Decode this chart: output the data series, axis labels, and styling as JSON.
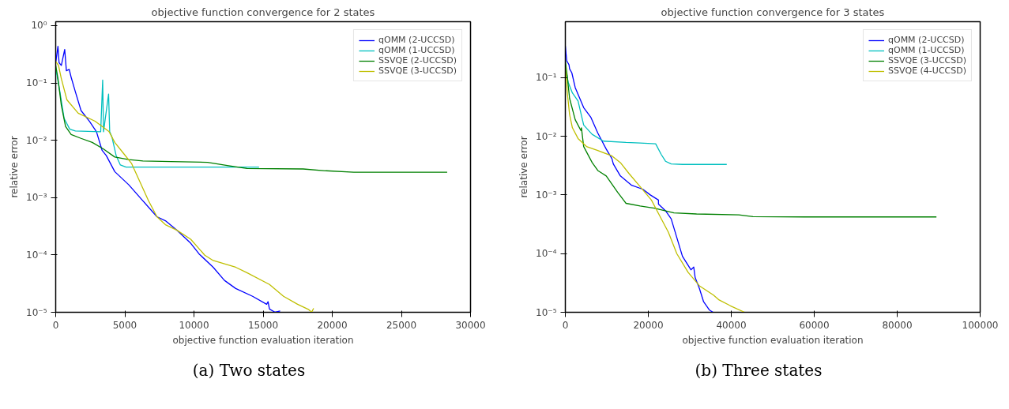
{
  "chart_data": [
    {
      "type": "line",
      "title": "objective function convergence for 2 states",
      "xlabel": "objective function evaluation iteration",
      "ylabel": "relative error",
      "log": "y",
      "grid": false,
      "legend": "top right",
      "xlim": [
        0,
        30000
      ],
      "xticks": [
        0,
        5000,
        10000,
        15000,
        20000,
        25000,
        30000
      ],
      "ylim": [
        1e-05,
        1.17
      ],
      "yticks": [
        {
          "value": 1,
          "label": "10⁰"
        },
        {
          "value": 0.1,
          "label": "10⁻¹"
        },
        {
          "value": 0.01,
          "label": "10⁻²"
        },
        {
          "value": 0.001,
          "label": "10⁻³"
        },
        {
          "value": 0.0001,
          "label": "10⁻⁴"
        },
        {
          "value": 1e-05,
          "label": "10⁻⁵"
        }
      ],
      "annotations": [
        "(a) Two states"
      ],
      "series": [
        {
          "name": "qOMM (2-UCCSD)",
          "color": "#0000ff",
          "x": [
            0,
            163,
            244,
            407,
            651,
            773,
            976,
            1119,
            1424,
            1831,
            2441,
            2949,
            3356,
            3661,
            4271,
            5288,
            6305,
            7322,
            7933,
            8746,
            9763,
            10373,
            11390,
            12204,
            13018,
            14238,
            15255,
            15357,
            15458,
            15865,
            16231
          ],
          "values": [
            0.225,
            0.435,
            0.225,
            0.202,
            0.383,
            0.163,
            0.172,
            0.125,
            0.0697,
            0.033,
            0.0215,
            0.0141,
            0.00667,
            0.00539,
            0.00284,
            0.00167,
            0.00088,
            0.000464,
            0.000395,
            0.000272,
            0.00016,
            0.000104,
            6.1e-05,
            3.6e-05,
            2.6e-05,
            1.9e-05,
            1.38e-05,
            1.53e-05,
            1.14e-05,
            1e-05,
            1.05e-05
          ]
        },
        {
          "name": "qOMM (1-UCCSD)",
          "color": "#00bfbf",
          "x": [
            0,
            305,
            610,
            1017,
            1424,
            3254,
            3397,
            3458,
            3824,
            3905,
            4068,
            4373,
            4678,
            5085,
            9356,
            14706
          ],
          "values": [
            0.182,
            0.0697,
            0.024,
            0.0156,
            0.0145,
            0.0141,
            0.112,
            0.0141,
            0.064,
            0.0141,
            0.0114,
            0.00539,
            0.00371,
            0.0034,
            0.0034,
            0.0034
          ]
        },
        {
          "name": "SSVQE (2-UCCSD)",
          "color": "#008000",
          "x": [
            0,
            163,
            407,
            712,
            1119,
            1831,
            2644,
            3458,
            4271,
            5288,
            6305,
            8339,
            10983,
            12407,
            13831,
            17899,
            19526,
            21560,
            28312
          ],
          "values": [
            0.202,
            0.119,
            0.0408,
            0.0174,
            0.0126,
            0.0108,
            0.00918,
            0.00703,
            0.0051,
            0.00459,
            0.00435,
            0.00426,
            0.00413,
            0.00363,
            0.00323,
            0.00316,
            0.00294,
            0.00278,
            0.00278
          ]
        },
        {
          "name": "SSVQE (3-UCCSD)",
          "color": "#bfbf00",
          "x": [
            0,
            203,
            407,
            814,
            1627,
            2848,
            3865,
            4271,
            4882,
            5492,
            6102,
            6712,
            7322,
            7933,
            8746,
            9763,
            10780,
            11390,
            13018,
            13831,
            15458,
            16475,
            17492,
            18305,
            18508,
            18651
          ],
          "values": [
            0.237,
            0.202,
            0.119,
            0.0506,
            0.0297,
            0.0215,
            0.0141,
            0.00918,
            0.006,
            0.00392,
            0.00186,
            0.00088,
            0.000464,
            0.000337,
            0.000272,
            0.000188,
            9.9e-05,
            8e-05,
            6.1e-05,
            4.9e-05,
            3.06e-05,
            1.9e-05,
            1.38e-05,
            1.11e-05,
            1e-05,
            1.17e-05
          ]
        }
      ]
    },
    {
      "type": "line",
      "title": "objective function convergence for 3 states",
      "xlabel": "objective function evaluation iteration",
      "ylabel": "relative error",
      "log": "y",
      "grid": false,
      "legend": "top right",
      "xlim": [
        0,
        100000
      ],
      "xticks": [
        0,
        20000,
        40000,
        60000,
        80000,
        100000
      ],
      "ylim": [
        1e-05,
        0.9
      ],
      "yticks": [
        {
          "value": 0.1,
          "label": "10⁻¹"
        },
        {
          "value": 0.01,
          "label": "10⁻²"
        },
        {
          "value": 0.001,
          "label": "10⁻³"
        },
        {
          "value": 0.0001,
          "label": "10⁻⁴"
        },
        {
          "value": 1e-05,
          "label": "10⁻⁵"
        }
      ],
      "annotations": [
        "(b) Three states"
      ],
      "series": [
        {
          "name": "qOMM (2-UCCSD)",
          "color": "#0000ff",
          "x": [
            0,
            340,
            884,
            1020,
            1565,
            2381,
            4422,
            6123,
            7823,
            9864,
            11225,
            11565,
            13266,
            15987,
            18708,
            20409,
            22450,
            22450,
            24150,
            25511,
            26872,
            28233,
            30274,
            30954,
            31294,
            32314,
            33335,
            34695,
            35580
          ],
          "values": [
            0.346,
            0.194,
            0.166,
            0.142,
            0.121,
            0.0678,
            0.0308,
            0.0213,
            0.0114,
            0.00604,
            0.00418,
            0.00339,
            0.00211,
            0.00146,
            0.00125,
            0.00101,
            0.000819,
            0.0007,
            0.000538,
            0.000393,
            0.000188,
            9e-05,
            5.3e-05,
            5.9e-05,
            3.9e-05,
            2.55e-05,
            1.51e-05,
            1.1e-05,
            1e-05
          ]
        },
        {
          "name": "qOMM (1-UCCSD)",
          "color": "#00bfbf",
          "x": [
            0,
            680,
            1701,
            3061,
            4422,
            6463,
            9184,
            14626,
            18028,
            21769,
            23130,
            24150,
            25511,
            28233,
            38913
          ],
          "values": [
            0.157,
            0.0836,
            0.0549,
            0.0401,
            0.0156,
            0.0108,
            0.00828,
            0.00785,
            0.00769,
            0.00745,
            0.00489,
            0.00376,
            0.00339,
            0.00332,
            0.00332
          ]
        },
        {
          "name": "SSVQE (3-UCCSD)",
          "color": "#008000",
          "x": [
            0,
            476,
            1020,
            2381,
            3742,
            3878,
            4422,
            6463,
            7823,
            9864,
            12585,
            14626,
            18028,
            21429,
            26191,
            31634,
            41838,
            45240,
            58846,
            89460
          ],
          "values": [
            0.194,
            0.103,
            0.0445,
            0.0192,
            0.0126,
            0.014,
            0.0067,
            0.00357,
            0.00261,
            0.00211,
            0.00112,
            0.000721,
            0.00065,
            0.000598,
            0.000494,
            0.000474,
            0.000459,
            0.000427,
            0.000422,
            0.000422
          ]
        },
        {
          "name": "SSVQE (4-UCCSD)",
          "color": "#bfbf00",
          "x": [
            0,
            476,
            1020,
            1701,
            3061,
            5102,
            7823,
            11225,
            13266,
            15307,
            18028,
            20749,
            22790,
            24830,
            26872,
            29593,
            32314,
            35716,
            37077,
            39798,
            43199
          ],
          "values": [
            0.157,
            0.0549,
            0.0237,
            0.014,
            0.00918,
            0.0067,
            0.00573,
            0.00464,
            0.00357,
            0.00234,
            0.00139,
            0.000819,
            0.000436,
            0.000232,
            0.0001,
            4.8e-05,
            2.83e-05,
            1.96e-05,
            1.62e-05,
            1.29e-05,
            1e-05
          ]
        }
      ]
    }
  ]
}
